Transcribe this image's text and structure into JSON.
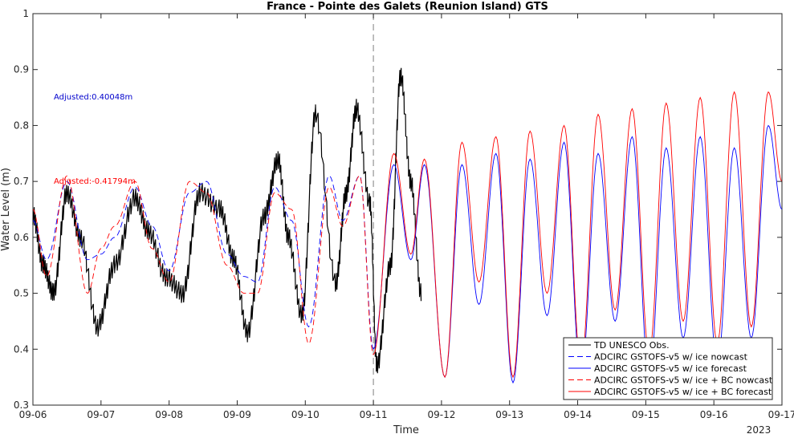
{
  "chart_data": {
    "type": "line",
    "title": "France - Pointe des Galets (Reunion Island) GTS",
    "xlabel": "Time",
    "ylabel": "Water Level (m)",
    "x_ticks": [
      "09-06",
      "09-07",
      "09-08",
      "09-09",
      "09-10",
      "09-11",
      "09-12",
      "09-13",
      "09-14",
      "09-15",
      "09-16",
      "09-17"
    ],
    "year_label": "2023",
    "xlim": [
      0,
      11
    ],
    "ylim": [
      0.3,
      1.0
    ],
    "y_ticks": [
      "0.3",
      "0.4",
      "0.5",
      "0.6",
      "0.7",
      "0.8",
      "0.9",
      "1"
    ],
    "nowcast_forecast_split_day": 5,
    "grid": false,
    "legend_position": "bottom-right",
    "annotations": [
      {
        "text": "Adjusted:0.40048m",
        "color": "#0000cc"
      },
      {
        "text": "Adjusted:-0.41794m",
        "color": "#ff0000"
      }
    ],
    "series": [
      {
        "name": "TD UNESCO Obs.",
        "color": "#000000",
        "style": "solid",
        "x": [
          0,
          0.15,
          0.3,
          0.5,
          0.7,
          0.95,
          1.2,
          1.5,
          1.7,
          1.95,
          2.2,
          2.45,
          2.75,
          2.95,
          3.15,
          3.4,
          3.6,
          3.75,
          3.95,
          4.15,
          4.45,
          4.6,
          4.75,
          4.95,
          5.05,
          5.25,
          5.4,
          5.55,
          5.7
        ],
        "y": [
          0.64,
          0.55,
          0.5,
          0.68,
          0.6,
          0.44,
          0.55,
          0.67,
          0.61,
          0.53,
          0.5,
          0.68,
          0.65,
          0.56,
          0.43,
          0.64,
          0.74,
          0.6,
          0.46,
          0.82,
          0.52,
          0.68,
          0.83,
          0.66,
          0.37,
          0.55,
          0.89,
          0.7,
          0.5
        ]
      },
      {
        "name": "ADCIRC GSTOFS-v5 w/ ice nowcast",
        "color": "#0000ff",
        "style": "dashed",
        "x": [
          0,
          0.2,
          0.5,
          0.8,
          1.0,
          1.2,
          1.5,
          1.75,
          2.0,
          2.3,
          2.55,
          2.85,
          3.1,
          3.3,
          3.55,
          3.8,
          4.05,
          4.35,
          4.55,
          4.8,
          5.0
        ],
        "y": [
          0.63,
          0.56,
          0.7,
          0.56,
          0.57,
          0.6,
          0.69,
          0.62,
          0.54,
          0.68,
          0.7,
          0.57,
          0.53,
          0.52,
          0.69,
          0.63,
          0.44,
          0.71,
          0.63,
          0.71,
          0.4
        ]
      },
      {
        "name": "ADCIRC GSTOFS-v5 w/ ice forecast",
        "color": "#0000ff",
        "style": "solid",
        "x": [
          5.0,
          5.3,
          5.55,
          5.75,
          6.05,
          6.3,
          6.55,
          6.8,
          7.05,
          7.3,
          7.55,
          7.8,
          8.05,
          8.3,
          8.55,
          8.8,
          9.05,
          9.3,
          9.55,
          9.8,
          10.05,
          10.3,
          10.55,
          10.8,
          11.0
        ],
        "y": [
          0.4,
          0.73,
          0.56,
          0.73,
          0.35,
          0.73,
          0.48,
          0.75,
          0.34,
          0.74,
          0.46,
          0.77,
          0.35,
          0.75,
          0.45,
          0.78,
          0.35,
          0.76,
          0.42,
          0.78,
          0.37,
          0.76,
          0.42,
          0.8,
          0.65
        ]
      },
      {
        "name": "ADCIRC GSTOFS-v5 w/ ice + BC nowcast",
        "color": "#ff0000",
        "style": "dashed",
        "x": [
          0,
          0.2,
          0.5,
          0.8,
          1.0,
          1.2,
          1.5,
          1.75,
          2.0,
          2.3,
          2.55,
          2.85,
          3.1,
          3.3,
          3.55,
          3.8,
          4.05,
          4.35,
          4.55,
          4.8,
          5.0
        ],
        "y": [
          0.65,
          0.53,
          0.71,
          0.5,
          0.58,
          0.62,
          0.7,
          0.58,
          0.52,
          0.7,
          0.68,
          0.55,
          0.5,
          0.5,
          0.68,
          0.65,
          0.41,
          0.69,
          0.62,
          0.71,
          0.39
        ]
      },
      {
        "name": "ADCIRC GSTOFS-v5 w/ ice + BC forecast",
        "color": "#ff0000",
        "style": "solid",
        "x": [
          5.0,
          5.3,
          5.55,
          5.75,
          6.05,
          6.3,
          6.55,
          6.8,
          7.05,
          7.3,
          7.55,
          7.8,
          8.05,
          8.3,
          8.55,
          8.8,
          9.05,
          9.3,
          9.55,
          9.8,
          10.05,
          10.3,
          10.55,
          10.8,
          11.0
        ],
        "y": [
          0.39,
          0.75,
          0.57,
          0.74,
          0.35,
          0.77,
          0.52,
          0.78,
          0.35,
          0.79,
          0.5,
          0.8,
          0.37,
          0.82,
          0.47,
          0.83,
          0.39,
          0.84,
          0.45,
          0.85,
          0.41,
          0.86,
          0.44,
          0.86,
          0.7
        ]
      }
    ]
  }
}
